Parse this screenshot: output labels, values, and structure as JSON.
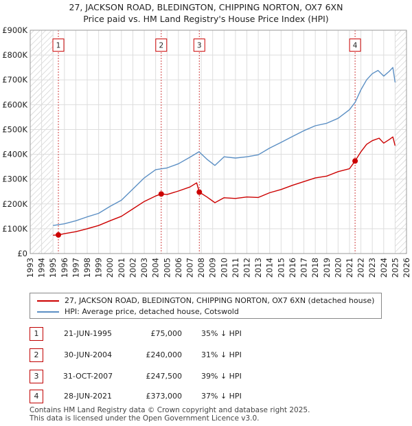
{
  "chart_data": {
    "type": "line",
    "title": "27, JACKSON ROAD, BLEDINGTON, CHIPPING NORTON, OX7 6XN",
    "subtitle": "Price paid vs. HM Land Registry's House Price Index (HPI)",
    "xlim": [
      1993,
      2026
    ],
    "ylim": [
      0,
      900000
    ],
    "x_ticks": [
      "1993",
      "1994",
      "1995",
      "1996",
      "1997",
      "1998",
      "1999",
      "2000",
      "2001",
      "2002",
      "2003",
      "2004",
      "2005",
      "2006",
      "2007",
      "2008",
      "2009",
      "2010",
      "2011",
      "2012",
      "2013",
      "2014",
      "2015",
      "2016",
      "2017",
      "2018",
      "2019",
      "2020",
      "2021",
      "2022",
      "2023",
      "2024",
      "2025",
      "2026"
    ],
    "y_ticks": [
      {
        "value": 0,
        "label": "£0"
      },
      {
        "value": 100000,
        "label": "£100K"
      },
      {
        "value": 200000,
        "label": "£200K"
      },
      {
        "value": 300000,
        "label": "£300K"
      },
      {
        "value": 400000,
        "label": "£400K"
      },
      {
        "value": 500000,
        "label": "£500K"
      },
      {
        "value": 600000,
        "label": "£600K"
      },
      {
        "value": 700000,
        "label": "£700K"
      },
      {
        "value": 800000,
        "label": "£800K"
      },
      {
        "value": 900000,
        "label": "£900K"
      }
    ],
    "hatched_ranges": [
      [
        1993.0,
        1995.0
      ],
      [
        2025.0,
        2026.0
      ]
    ],
    "series": [
      {
        "name": "27, JACKSON ROAD, BLEDINGTON, CHIPPING NORTON, OX7 6XN (detached house)",
        "color": "#cc0000",
        "points": [
          [
            1995.0,
            74000
          ],
          [
            1995.47,
            75000
          ],
          [
            1996.0,
            80000
          ],
          [
            1997.0,
            88000
          ],
          [
            1998.0,
            100000
          ],
          [
            1999.0,
            113000
          ],
          [
            2000.0,
            132000
          ],
          [
            2001.0,
            150000
          ],
          [
            2002.0,
            180000
          ],
          [
            2003.0,
            210000
          ],
          [
            2004.0,
            232000
          ],
          [
            2004.49,
            240000
          ],
          [
            2005.0,
            238000
          ],
          [
            2006.0,
            252000
          ],
          [
            2007.0,
            268000
          ],
          [
            2007.6,
            285000
          ],
          [
            2007.83,
            247500
          ],
          [
            2008.5,
            228000
          ],
          [
            2009.2,
            205000
          ],
          [
            2010.0,
            225000
          ],
          [
            2011.0,
            222000
          ],
          [
            2012.0,
            228000
          ],
          [
            2013.0,
            226000
          ],
          [
            2014.0,
            245000
          ],
          [
            2015.0,
            258000
          ],
          [
            2016.0,
            275000
          ],
          [
            2017.0,
            290000
          ],
          [
            2018.0,
            305000
          ],
          [
            2019.0,
            312000
          ],
          [
            2020.0,
            330000
          ],
          [
            2021.0,
            342000
          ],
          [
            2021.49,
            373000
          ],
          [
            2022.0,
            410000
          ],
          [
            2022.5,
            440000
          ],
          [
            2023.0,
            455000
          ],
          [
            2023.6,
            465000
          ],
          [
            2024.0,
            445000
          ],
          [
            2024.5,
            460000
          ],
          [
            2024.8,
            470000
          ],
          [
            2025.0,
            435000
          ]
        ]
      },
      {
        "name": "HPI: Average price, detached house, Cotswold",
        "color": "#5b8fc4",
        "points": [
          [
            1995.0,
            113000
          ],
          [
            1996.0,
            120000
          ],
          [
            1997.0,
            132000
          ],
          [
            1998.0,
            148000
          ],
          [
            1999.0,
            162000
          ],
          [
            2000.0,
            190000
          ],
          [
            2001.0,
            215000
          ],
          [
            2002.0,
            260000
          ],
          [
            2003.0,
            305000
          ],
          [
            2004.0,
            338000
          ],
          [
            2005.0,
            345000
          ],
          [
            2006.0,
            362000
          ],
          [
            2007.0,
            388000
          ],
          [
            2007.8,
            410000
          ],
          [
            2008.5,
            380000
          ],
          [
            2009.2,
            355000
          ],
          [
            2010.0,
            390000
          ],
          [
            2011.0,
            385000
          ],
          [
            2012.0,
            390000
          ],
          [
            2013.0,
            398000
          ],
          [
            2014.0,
            425000
          ],
          [
            2015.0,
            448000
          ],
          [
            2016.0,
            472000
          ],
          [
            2017.0,
            495000
          ],
          [
            2018.0,
            515000
          ],
          [
            2019.0,
            525000
          ],
          [
            2020.0,
            545000
          ],
          [
            2021.0,
            580000
          ],
          [
            2021.5,
            610000
          ],
          [
            2022.0,
            660000
          ],
          [
            2022.5,
            700000
          ],
          [
            2023.0,
            725000
          ],
          [
            2023.5,
            738000
          ],
          [
            2024.0,
            715000
          ],
          [
            2024.5,
            735000
          ],
          [
            2024.8,
            750000
          ],
          [
            2025.0,
            690000
          ]
        ]
      }
    ],
    "sales": [
      {
        "id": "1",
        "x": 1995.47,
        "price": 75000,
        "label_value": 840000
      },
      {
        "id": "2",
        "x": 2004.49,
        "price": 240000,
        "label_value": 840000
      },
      {
        "id": "3",
        "x": 2007.83,
        "price": 247500,
        "label_value": 840000
      },
      {
        "id": "4",
        "x": 2021.49,
        "price": 373000,
        "label_value": 840000
      }
    ]
  },
  "legend": {
    "property_label": "27, JACKSON ROAD, BLEDINGTON, CHIPPING NORTON, OX7 6XN (detached house)",
    "hpi_label": "HPI: Average price, detached house, Cotswold",
    "property_color": "#cc0000",
    "hpi_color": "#5b8fc4"
  },
  "transactions": [
    {
      "num": "1",
      "date": "21-JUN-1995",
      "price": "£75,000",
      "hpi": "35% ↓ HPI"
    },
    {
      "num": "2",
      "date": "30-JUN-2004",
      "price": "£240,000",
      "hpi": "31% ↓ HPI"
    },
    {
      "num": "3",
      "date": "31-OCT-2007",
      "price": "£247,500",
      "hpi": "39% ↓ HPI"
    },
    {
      "num": "4",
      "date": "28-JUN-2021",
      "price": "£373,000",
      "hpi": "37% ↓ HPI"
    }
  ],
  "footer": {
    "line1": "Contains HM Land Registry data © Crown copyright and database right 2025.",
    "line2": "This data is licensed under the Open Government Licence v3.0."
  }
}
